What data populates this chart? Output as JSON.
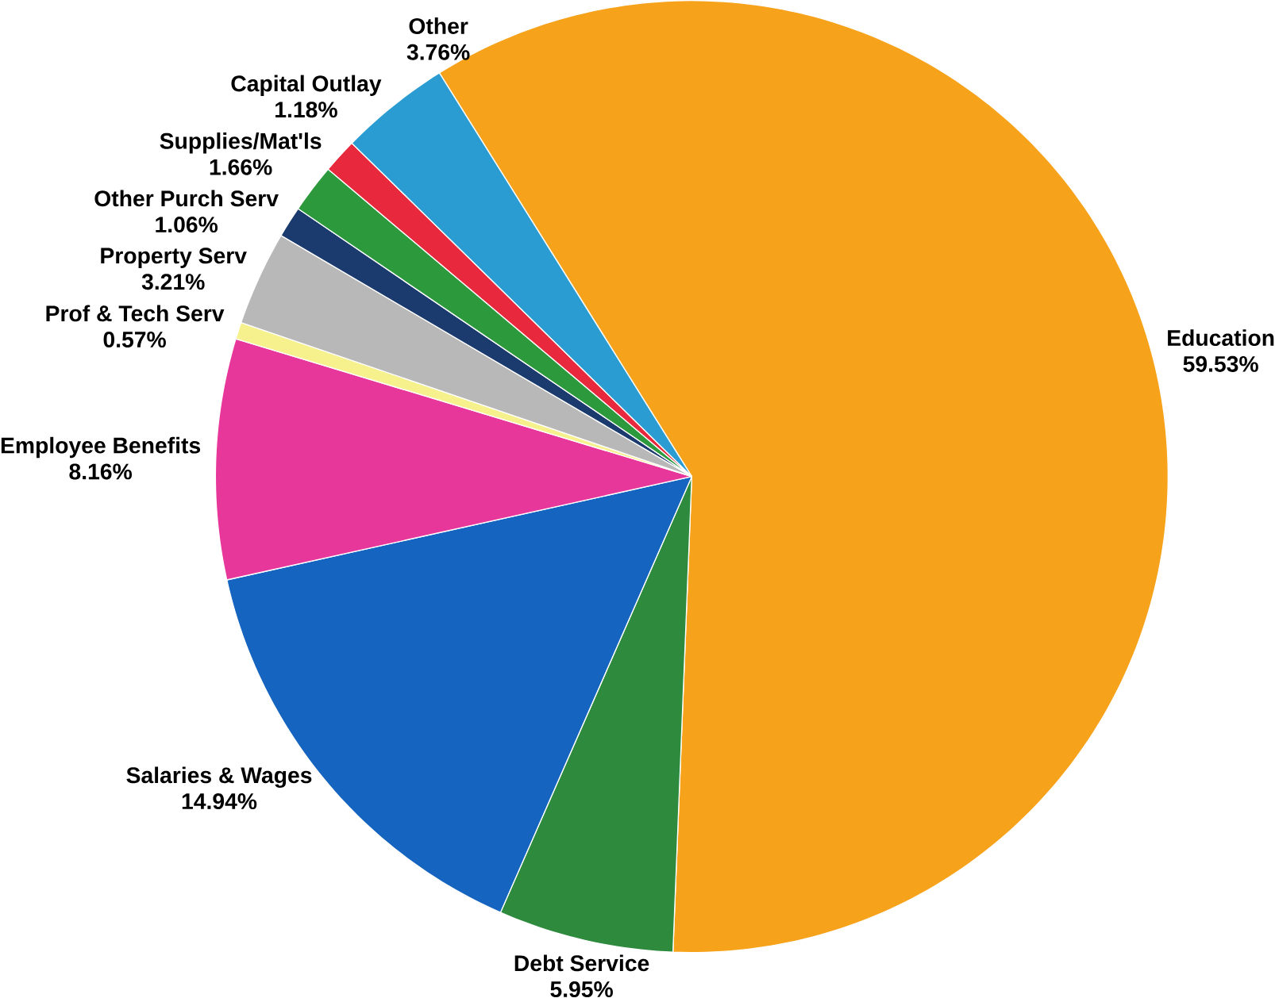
{
  "chart_data": {
    "type": "pie",
    "categories": [
      "Education",
      "Debt Service",
      "Salaries & Wages",
      "Employee Benefits",
      "Prof & Tech Serv",
      "Property Serv",
      "Other Purch Serv",
      "Supplies/Mat'ls",
      "Capital Outlay",
      "Other"
    ],
    "values": [
      59.53,
      5.95,
      14.94,
      8.16,
      0.57,
      3.21,
      1.06,
      1.66,
      1.18,
      3.76
    ],
    "value_labels": [
      "59.53%",
      "5.95%",
      "14.94%",
      "8.16%",
      "0.57%",
      "3.21%",
      "1.06%",
      "1.66%",
      "1.18%",
      "3.76%"
    ],
    "colors": [
      "#f7a21b",
      "#2e8b3e",
      "#1565c0",
      "#e8379b",
      "#f6f18c",
      "#b8b8b8",
      "#1b3a6e",
      "#2c9a3c",
      "#e8283c",
      "#2a9cd2"
    ]
  }
}
